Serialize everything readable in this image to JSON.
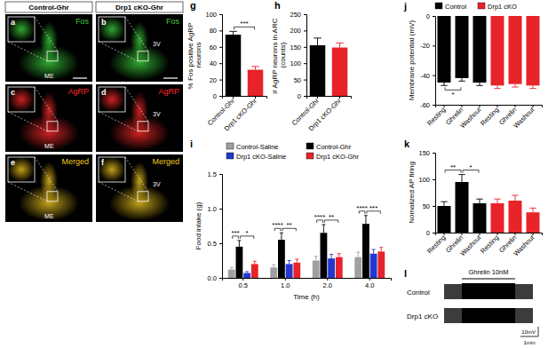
{
  "images": {
    "columns": [
      "Control-Ghr",
      "Drp1 cKO-Ghr"
    ],
    "panel_labels": [
      [
        "a",
        "b"
      ],
      [
        "c",
        "d"
      ],
      [
        "e",
        "f"
      ]
    ],
    "rows": [
      {
        "stain": "Fos",
        "color": "#3bd13b"
      },
      {
        "stain": "AgRP",
        "color": "#ff2a2a"
      },
      {
        "stain": "Merged",
        "color": "#f2c81e"
      }
    ],
    "landmarks": [
      "ME",
      "3V"
    ]
  },
  "chart_data": [
    {
      "type": "bar",
      "panel_label": "g",
      "y_label": "% Fos positive AgRP neurons",
      "categories": [
        "Control-Ghr",
        "Drp1 cKO-Ghr"
      ],
      "values": [
        75,
        32
      ],
      "errors": [
        4,
        4
      ],
      "colors": [
        "#000000",
        "#e8232a"
      ],
      "ylim": [
        0,
        100
      ],
      "yticks": [
        0,
        20,
        40,
        60,
        80,
        100
      ],
      "annotations": [
        {
          "text": "***",
          "from": 0,
          "to": 1
        }
      ]
    },
    {
      "type": "bar",
      "panel_label": "h",
      "y_label": "# AgRP neurons in ARC (counts)",
      "categories": [
        "Control-Ghr",
        "Drp1 cKO-Ghr"
      ],
      "values": [
        155,
        148
      ],
      "errors": [
        22,
        14
      ],
      "colors": [
        "#000000",
        "#e8232a"
      ],
      "ylim": [
        0,
        250
      ],
      "yticks": [
        0,
        50,
        100,
        150,
        200,
        250
      ]
    },
    {
      "type": "bar",
      "panel_label": "i",
      "y_label": "Food intake (g)",
      "x_label": "Time (h)",
      "categories": [
        "0.5",
        "1.0",
        "2.0",
        "4.0"
      ],
      "series": [
        {
          "name": "Control-Saline",
          "color": "#a0a0a0",
          "values": [
            0.12,
            0.15,
            0.25,
            0.3
          ],
          "errors": [
            0.03,
            0.04,
            0.06,
            0.07
          ]
        },
        {
          "name": "Control-Ghr",
          "color": "#000000",
          "values": [
            0.45,
            0.55,
            0.65,
            0.78
          ],
          "errors": [
            0.09,
            0.1,
            0.12,
            0.12
          ]
        },
        {
          "name": "Drp1 cKO-Saline",
          "color": "#2038d0",
          "values": [
            0.07,
            0.2,
            0.28,
            0.35
          ],
          "errors": [
            0.02,
            0.05,
            0.06,
            0.06
          ]
        },
        {
          "name": "Drp1 cKO-Ghr",
          "color": "#e8232a",
          "values": [
            0.2,
            0.22,
            0.3,
            0.38
          ],
          "errors": [
            0.04,
            0.05,
            0.05,
            0.06
          ]
        }
      ],
      "ylim": [
        0,
        1.5
      ],
      "yticks": [
        {
          "value": 0,
          "label": "0.0"
        },
        0.5,
        {
          "value": 1,
          "label": "1.0"
        },
        1.5
      ],
      "legend": "top",
      "annotations": [
        {
          "text": "***",
          "category": 0,
          "series": [
            0,
            1
          ]
        },
        {
          "text": "*",
          "category": 0,
          "series": [
            1,
            3
          ]
        },
        {
          "text": "****",
          "category": 1,
          "series": [
            0,
            1
          ]
        },
        {
          "text": "**",
          "category": 1,
          "series": [
            1,
            3
          ]
        },
        {
          "text": "****",
          "category": 2,
          "series": [
            0,
            1
          ]
        },
        {
          "text": "**",
          "category": 2,
          "series": [
            1,
            3
          ]
        },
        {
          "text": "****",
          "category": 3,
          "series": [
            0,
            1
          ]
        },
        {
          "text": "***",
          "category": 3,
          "series": [
            1,
            3
          ]
        }
      ]
    },
    {
      "type": "bar",
      "panel_label": "j",
      "y_label": "Membrane potential (mV)",
      "categories": [
        "Resting",
        "Ghrelin",
        "Washout",
        "Resting",
        "Ghrelin",
        "Washout"
      ],
      "series": [
        {
          "name": "Control",
          "color": "#000000",
          "values": [
            -45,
            -42,
            -45,
            null,
            null,
            null
          ],
          "errors": [
            2,
            2,
            2,
            null,
            null,
            null
          ]
        },
        {
          "name": "Drp1 cKO",
          "color": "#e8232a",
          "values": [
            null,
            null,
            null,
            -47,
            -46,
            -47
          ],
          "errors": [
            null,
            null,
            null,
            2,
            2,
            2
          ]
        }
      ],
      "stacked": true,
      "legend": "top",
      "ylim": [
        -60,
        0
      ],
      "yticks": [
        -60,
        -40,
        -20,
        0
      ],
      "annotations": [
        {
          "text": "*",
          "from": 0,
          "to": 1
        }
      ]
    },
    {
      "type": "bar",
      "panel_label": "k",
      "y_label": "Nomalized AP firing",
      "categories": [
        "Resting",
        "Ghrelin",
        "Washout",
        "Resting",
        "Ghrelin",
        "Washout"
      ],
      "series": [
        {
          "name": "Control",
          "color": "#000000",
          "values": [
            50,
            95,
            55,
            null,
            null,
            null
          ],
          "errors": [
            8,
            14,
            8,
            null,
            null,
            null
          ]
        },
        {
          "name": "Drp1 cKO",
          "color": "#e8232a",
          "values": [
            null,
            null,
            null,
            55,
            60,
            38
          ],
          "errors": [
            null,
            null,
            null,
            8,
            10,
            8
          ]
        }
      ],
      "stacked": true,
      "ylim": [
        0,
        150
      ],
      "yticks": [
        0,
        50,
        100,
        150
      ],
      "annotations": [
        {
          "text": "**",
          "from": 0,
          "to": 1
        },
        {
          "text": "*",
          "from": 1,
          "to": 2
        }
      ]
    }
  ],
  "traces": {
    "panel_label": "l",
    "stimulus": "Ghrelin 10nM",
    "rows": [
      "Control",
      "Drp1 cKO"
    ],
    "scale_bar": {
      "voltage": "10mV",
      "time": "1min"
    }
  }
}
